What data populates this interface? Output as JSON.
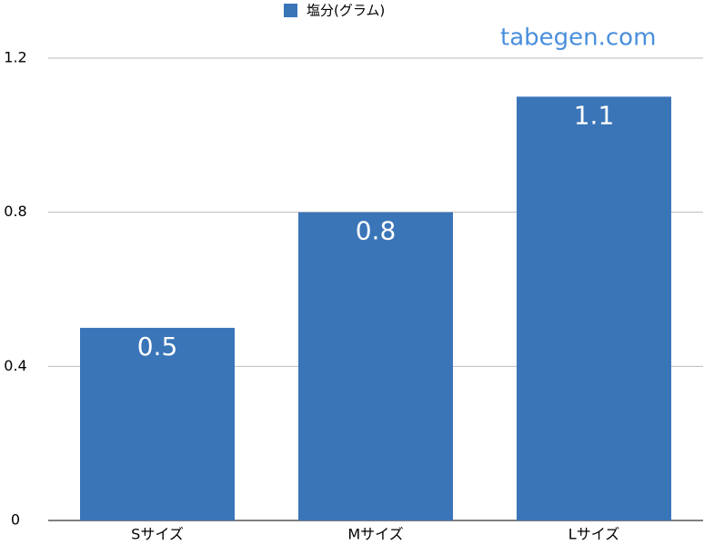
{
  "chart_data": {
    "type": "bar",
    "legend_position": "top",
    "watermark": "tabegen.com",
    "categories": [
      "Sサイズ",
      "Mサイズ",
      "Lサイズ"
    ],
    "series": [
      {
        "name": "塩分(グラム)",
        "color": "#3a75b8",
        "values": [
          0.5,
          0.8,
          1.1
        ]
      }
    ],
    "ylim": [
      0,
      1.2
    ],
    "yticks": [
      0,
      0.4,
      0.8,
      1.2
    ],
    "grid": true
  }
}
